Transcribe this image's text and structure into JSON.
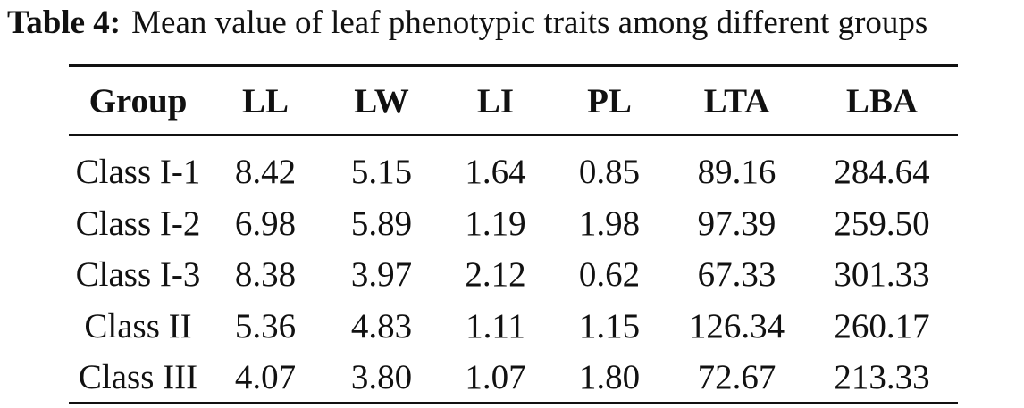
{
  "caption": {
    "label": "Table 4:",
    "text": "Mean value of leaf phenotypic traits among different groups"
  },
  "table": {
    "headers": [
      "Group",
      "LL",
      "LW",
      "LI",
      "PL",
      "LTA",
      "LBA"
    ],
    "rows": [
      [
        "Class I-1",
        "8.42",
        "5.15",
        "1.64",
        "0.85",
        "89.16",
        "284.64"
      ],
      [
        "Class I-2",
        "6.98",
        "5.89",
        "1.19",
        "1.98",
        "97.39",
        "259.50"
      ],
      [
        "Class I-3",
        "8.38",
        "3.97",
        "2.12",
        "0.62",
        "67.33",
        "301.33"
      ],
      [
        "Class II",
        "5.36",
        "4.83",
        "1.11",
        "1.15",
        "126.34",
        "260.17"
      ],
      [
        "Class III",
        "4.07",
        "3.80",
        "1.07",
        "1.80",
        "72.67",
        "213.33"
      ]
    ]
  }
}
